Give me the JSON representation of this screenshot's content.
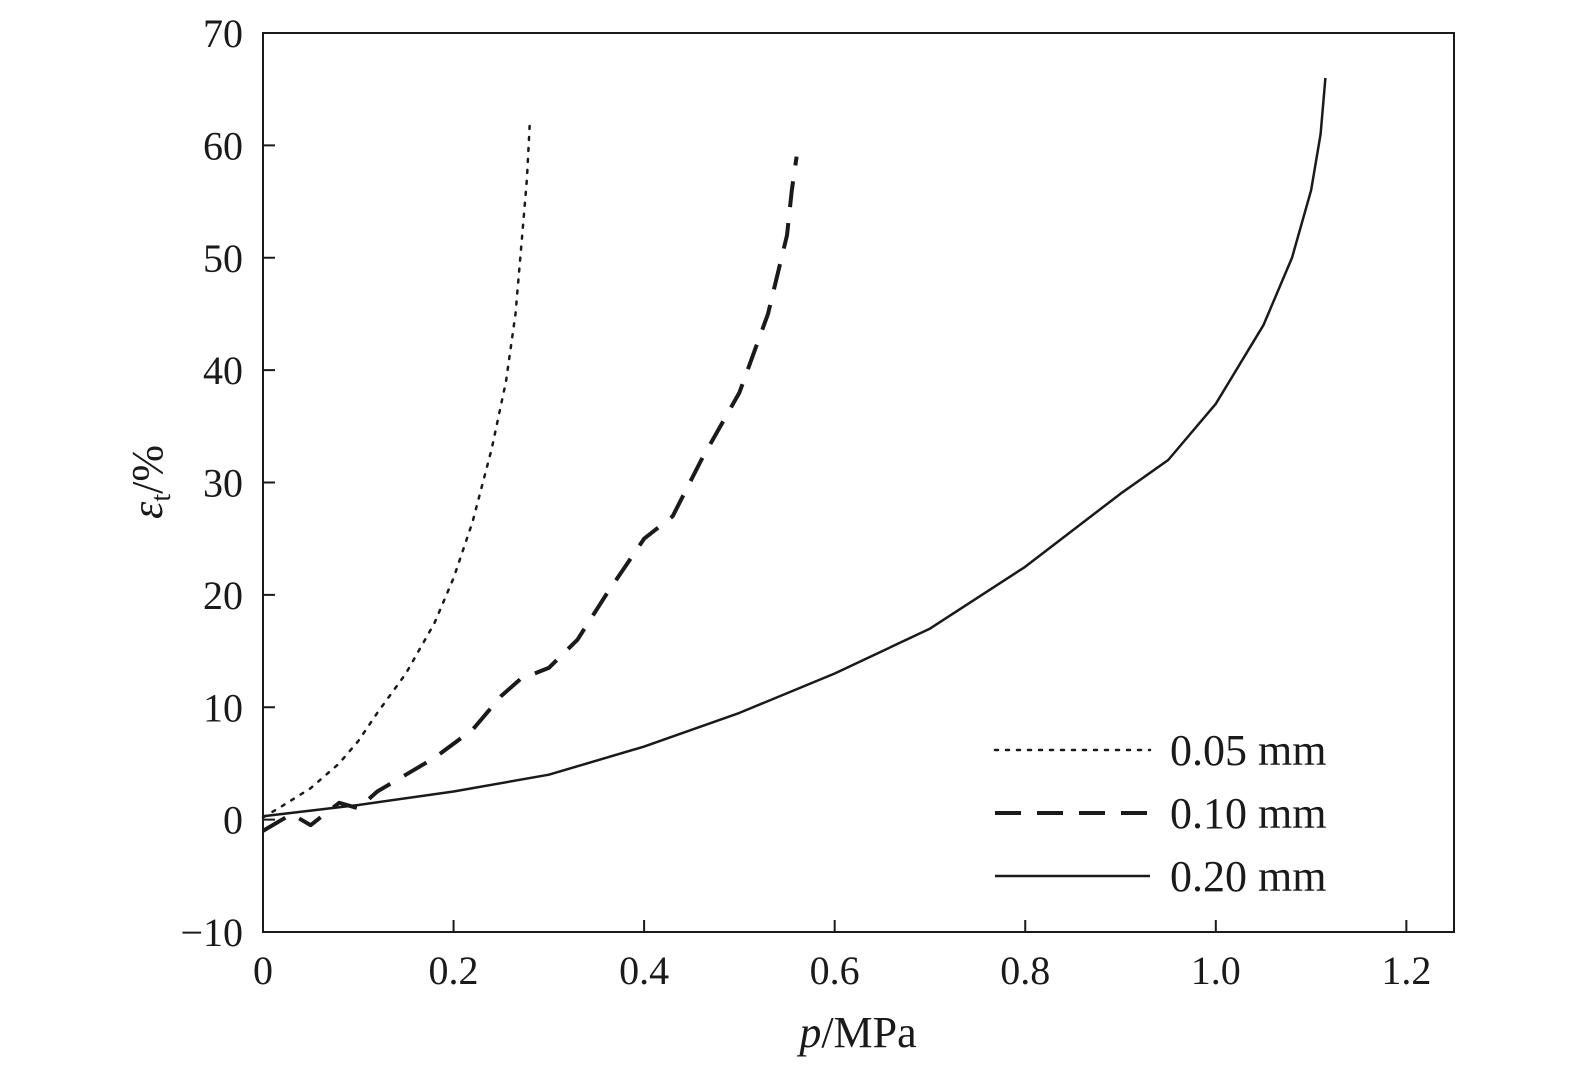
{
  "chart_data": {
    "type": "line",
    "xlim": [
      0,
      1.25
    ],
    "ylim": [
      -10,
      70
    ],
    "x_ticks": [
      {
        "value": 0,
        "label": "0"
      },
      {
        "value": 0.2,
        "label": "0.2"
      },
      {
        "value": 0.4,
        "label": "0.4"
      },
      {
        "value": 0.6,
        "label": "0.6"
      },
      {
        "value": 0.8,
        "label": "0.8"
      },
      {
        "value": 1.0,
        "label": "1.0"
      },
      {
        "value": 1.2,
        "label": "1.2"
      }
    ],
    "y_ticks": [
      {
        "value": -10,
        "label": "−10"
      },
      {
        "value": 0,
        "label": "0"
      },
      {
        "value": 10,
        "label": "10"
      },
      {
        "value": 20,
        "label": "20"
      },
      {
        "value": 30,
        "label": "30"
      },
      {
        "value": 40,
        "label": "40"
      },
      {
        "value": 50,
        "label": "50"
      },
      {
        "value": 60,
        "label": "60"
      },
      {
        "value": 70,
        "label": "70"
      }
    ],
    "xlabel": {
      "italic": "p",
      "rest": "/MPa"
    },
    "ylabel": {
      "symbol": "ε",
      "subscript": "t",
      "rest": "/%"
    },
    "grid": false,
    "legend": "bottom-right",
    "series": [
      {
        "name": "0.05 mm",
        "style": "dotted",
        "color": "#1a1a1a",
        "points": [
          [
            0,
            0.2
          ],
          [
            0.02,
            1.2
          ],
          [
            0.05,
            2.8
          ],
          [
            0.08,
            5
          ],
          [
            0.1,
            7
          ],
          [
            0.12,
            9.5
          ],
          [
            0.15,
            13
          ],
          [
            0.18,
            17.5
          ],
          [
            0.2,
            21.5
          ],
          [
            0.22,
            26.5
          ],
          [
            0.24,
            33
          ],
          [
            0.255,
            39
          ],
          [
            0.265,
            45
          ],
          [
            0.272,
            52
          ],
          [
            0.277,
            57
          ],
          [
            0.28,
            62
          ]
        ]
      },
      {
        "name": "0.10 mm",
        "style": "dashed",
        "color": "#1a1a1a",
        "points": [
          [
            0,
            -1
          ],
          [
            0.03,
            0.5
          ],
          [
            0.05,
            -0.5
          ],
          [
            0.08,
            1.5
          ],
          [
            0.1,
            1
          ],
          [
            0.12,
            2.5
          ],
          [
            0.15,
            4
          ],
          [
            0.18,
            5.5
          ],
          [
            0.22,
            8
          ],
          [
            0.25,
            11
          ],
          [
            0.27,
            12.5
          ],
          [
            0.3,
            13.5
          ],
          [
            0.33,
            16
          ],
          [
            0.36,
            20
          ],
          [
            0.4,
            25
          ],
          [
            0.43,
            27
          ],
          [
            0.46,
            32
          ],
          [
            0.5,
            38
          ],
          [
            0.53,
            45
          ],
          [
            0.55,
            52
          ],
          [
            0.555,
            56
          ],
          [
            0.56,
            59
          ]
        ]
      },
      {
        "name": "0.20 mm",
        "style": "solid",
        "color": "#1a1a1a",
        "points": [
          [
            0,
            0.3
          ],
          [
            0.05,
            0.8
          ],
          [
            0.1,
            1.3
          ],
          [
            0.2,
            2.5
          ],
          [
            0.3,
            4
          ],
          [
            0.4,
            6.5
          ],
          [
            0.5,
            9.5
          ],
          [
            0.6,
            13
          ],
          [
            0.7,
            17
          ],
          [
            0.8,
            22.5
          ],
          [
            0.9,
            29
          ],
          [
            0.95,
            32
          ],
          [
            1.0,
            37
          ],
          [
            1.05,
            44
          ],
          [
            1.08,
            50
          ],
          [
            1.1,
            56
          ],
          [
            1.11,
            61
          ],
          [
            1.115,
            66
          ]
        ]
      }
    ]
  }
}
